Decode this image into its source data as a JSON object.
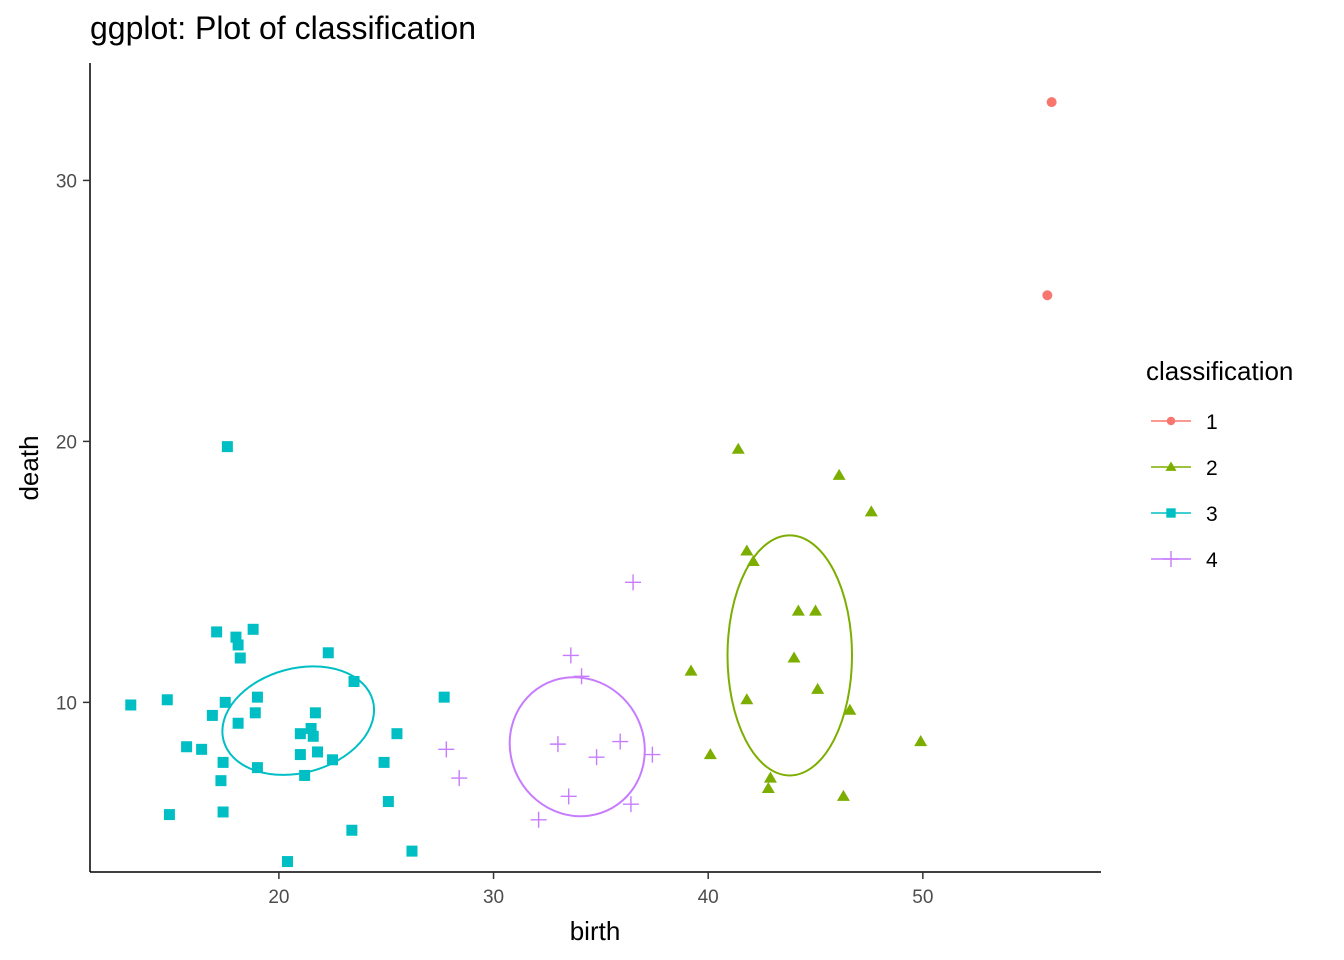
{
  "chart_data": {
    "type": "scatter",
    "title": "ggplot: Plot of classification",
    "xlabel": "birth",
    "ylabel": "death",
    "xlim": [
      11.2,
      58.3
    ],
    "ylim": [
      3.5,
      34.5
    ],
    "x_ticks": [
      20,
      30,
      40,
      50
    ],
    "y_ticks": [
      10,
      20,
      30
    ],
    "grid": false,
    "legend": {
      "title": "classification",
      "placement": "right"
    },
    "series": [
      {
        "name": "1",
        "color": "#F8766D",
        "shape": "circle",
        "points": [
          [
            56.0,
            33.0
          ],
          [
            55.8,
            25.6
          ]
        ]
      },
      {
        "name": "2",
        "color": "#7CAE00",
        "shape": "triangle",
        "points": [
          [
            41.4,
            19.7
          ],
          [
            46.1,
            18.7
          ],
          [
            47.6,
            17.3
          ],
          [
            41.8,
            15.8
          ],
          [
            42.1,
            15.4
          ],
          [
            44.2,
            13.5
          ],
          [
            45.0,
            13.5
          ],
          [
            44.0,
            11.7
          ],
          [
            39.2,
            11.2
          ],
          [
            45.1,
            10.5
          ],
          [
            41.8,
            10.1
          ],
          [
            46.6,
            9.7
          ],
          [
            49.9,
            8.5
          ],
          [
            40.1,
            8.0
          ],
          [
            42.9,
            7.1
          ],
          [
            42.8,
            6.7
          ],
          [
            46.3,
            6.4
          ]
        ],
        "ellipse": {
          "cx": 43.8,
          "cy": 11.8,
          "rx": 2.9,
          "ry": 4.6,
          "angle": 0
        }
      },
      {
        "name": "3",
        "color": "#00BFC4",
        "shape": "square",
        "points": [
          [
            17.6,
            19.8
          ],
          [
            17.1,
            12.7
          ],
          [
            18.8,
            12.8
          ],
          [
            18.0,
            12.5
          ],
          [
            18.1,
            12.2
          ],
          [
            18.2,
            11.7
          ],
          [
            22.3,
            11.9
          ],
          [
            23.5,
            10.8
          ],
          [
            13.1,
            9.9
          ],
          [
            14.8,
            10.1
          ],
          [
            17.5,
            10.0
          ],
          [
            19.0,
            10.2
          ],
          [
            27.7,
            10.2
          ],
          [
            16.9,
            9.5
          ],
          [
            18.9,
            9.6
          ],
          [
            21.7,
            9.6
          ],
          [
            18.1,
            9.2
          ],
          [
            21.5,
            9.0
          ],
          [
            25.5,
            8.8
          ],
          [
            21.0,
            8.8
          ],
          [
            21.6,
            8.7
          ],
          [
            15.7,
            8.3
          ],
          [
            16.4,
            8.2
          ],
          [
            21.0,
            8.0
          ],
          [
            21.8,
            8.1
          ],
          [
            17.4,
            7.7
          ],
          [
            22.5,
            7.8
          ],
          [
            24.9,
            7.7
          ],
          [
            19.0,
            7.5
          ],
          [
            21.2,
            7.2
          ],
          [
            17.3,
            7.0
          ],
          [
            25.1,
            6.2
          ],
          [
            14.9,
            5.7
          ],
          [
            17.4,
            5.8
          ],
          [
            23.4,
            5.1
          ],
          [
            26.2,
            4.3
          ],
          [
            20.4,
            3.9
          ]
        ],
        "ellipse": {
          "cx": 20.9,
          "cy": 9.3,
          "rx": 3.6,
          "ry": 2.0,
          "angle": -15
        }
      },
      {
        "name": "4",
        "color": "#C77CFF",
        "shape": "plus",
        "points": [
          [
            36.5,
            14.6
          ],
          [
            33.6,
            11.8
          ],
          [
            34.1,
            11.0
          ],
          [
            27.8,
            8.2
          ],
          [
            28.4,
            7.1
          ],
          [
            33.0,
            8.4
          ],
          [
            35.9,
            8.5
          ],
          [
            34.8,
            7.9
          ],
          [
            37.4,
            8.0
          ],
          [
            33.5,
            6.4
          ],
          [
            36.4,
            6.1
          ],
          [
            32.1,
            5.5
          ]
        ],
        "ellipse": {
          "cx": 33.9,
          "cy": 8.3,
          "rx": 3.1,
          "ry": 2.7,
          "angle": -30
        }
      }
    ]
  }
}
